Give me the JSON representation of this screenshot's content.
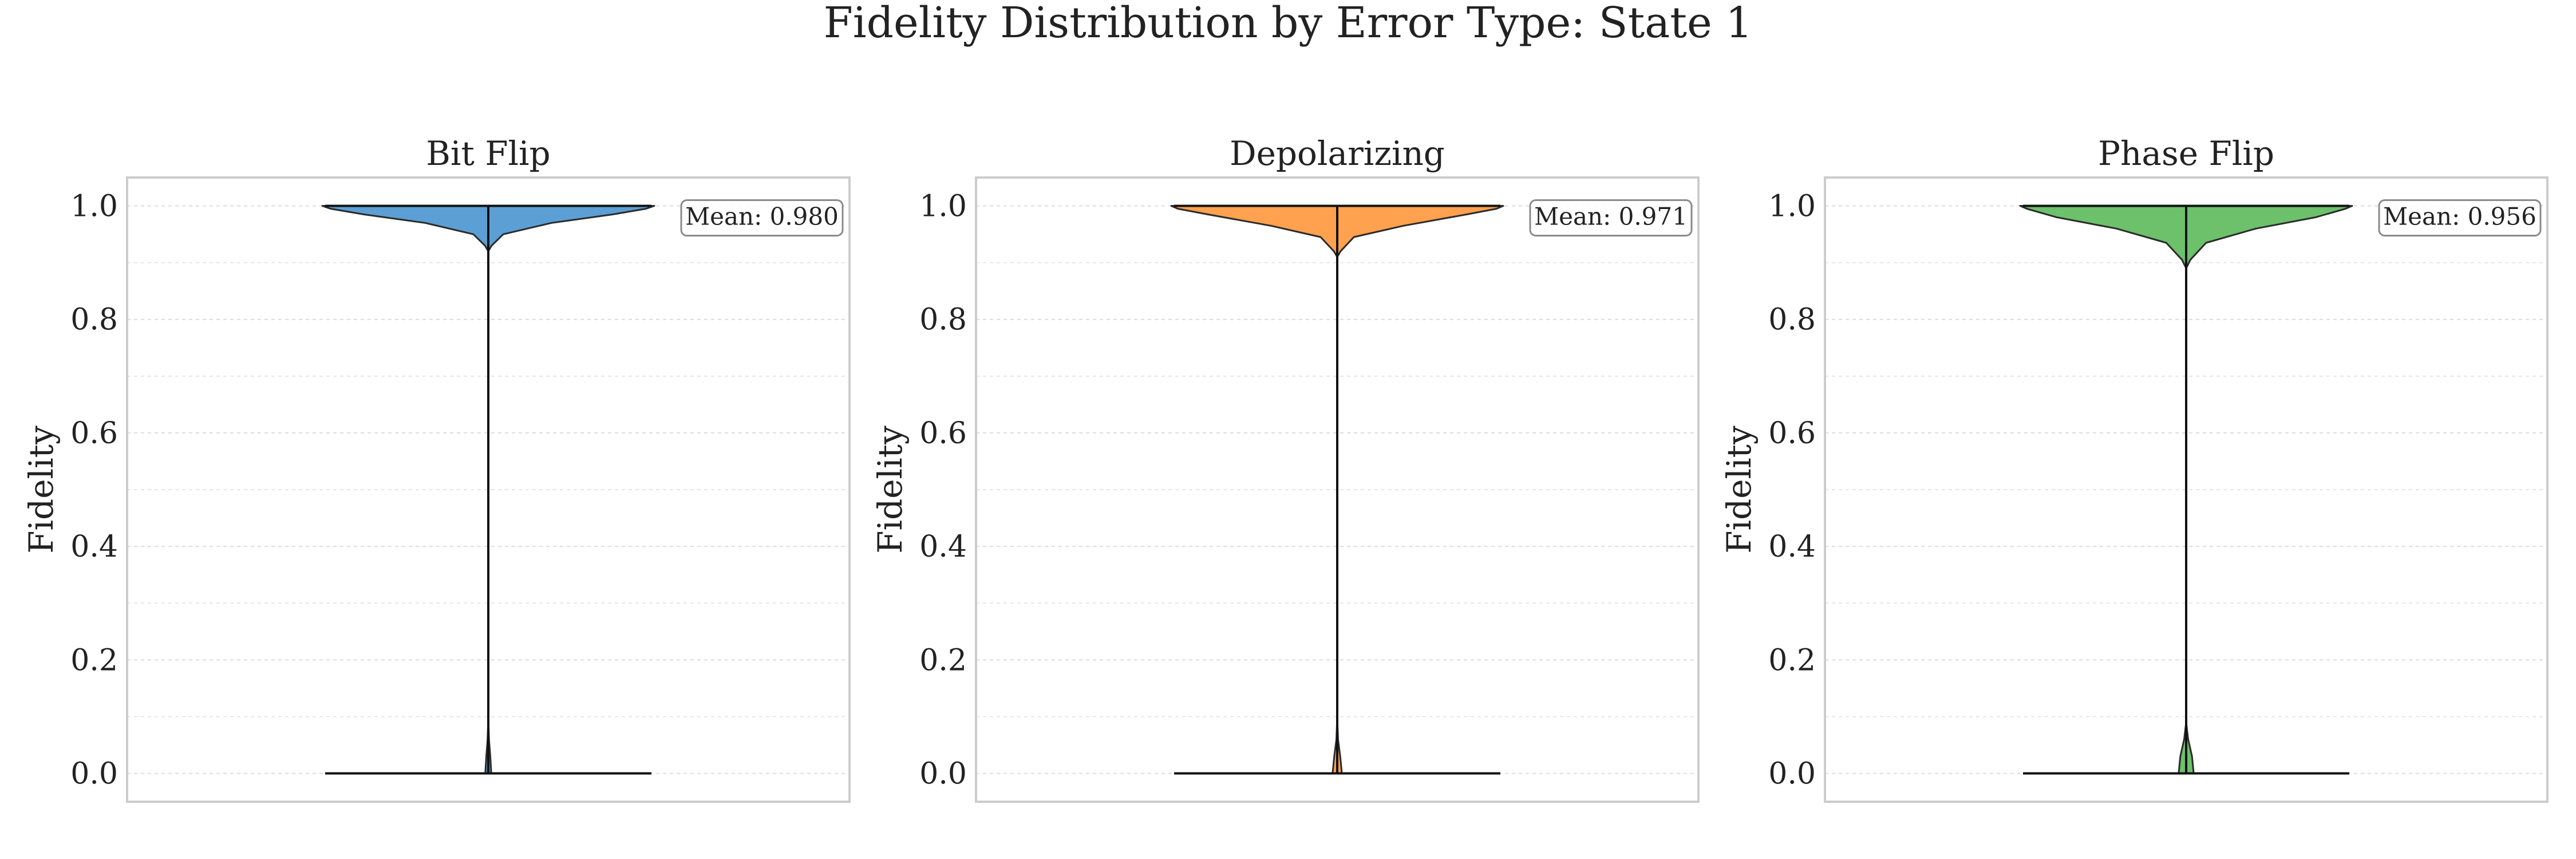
{
  "figure": {
    "title": "Fidelity Distribution by Error Type: State 1"
  },
  "chart_data": [
    {
      "type": "violin",
      "title": "Bit Flip",
      "ylabel": "Fidelity",
      "xlabel": "",
      "ylim": [
        -0.05,
        1.05
      ],
      "yticks": [
        "0.0",
        "0.2",
        "0.4",
        "0.6",
        "0.8",
        "1.0"
      ],
      "grid": true,
      "color": "#5b9fd4",
      "mean": 0.98,
      "mean_label": "Mean: 0.980",
      "min": 0.0,
      "max": 1.0,
      "density": [
        {
          "y": 0.0,
          "w": 0.018
        },
        {
          "y": 0.03,
          "w": 0.012
        },
        {
          "y": 0.06,
          "w": 0.004
        },
        {
          "y": 0.1,
          "w": 0.0
        },
        {
          "y": 0.92,
          "w": 0.0
        },
        {
          "y": 0.93,
          "w": 0.02
        },
        {
          "y": 0.95,
          "w": 0.09
        },
        {
          "y": 0.97,
          "w": 0.38
        },
        {
          "y": 0.985,
          "w": 0.75
        },
        {
          "y": 0.995,
          "w": 0.95
        },
        {
          "y": 1.0,
          "w": 1.0
        }
      ]
    },
    {
      "type": "violin",
      "title": "Depolarizing",
      "ylabel": "Fidelity",
      "xlabel": "",
      "ylim": [
        -0.05,
        1.05
      ],
      "yticks": [
        "0.0",
        "0.2",
        "0.4",
        "0.6",
        "0.8",
        "1.0"
      ],
      "grid": true,
      "color": "#ffa14f",
      "mean": 0.971,
      "mean_label": "Mean: 0.971",
      "min": 0.0,
      "max": 1.0,
      "density": [
        {
          "y": 0.0,
          "w": 0.028
        },
        {
          "y": 0.03,
          "w": 0.018
        },
        {
          "y": 0.06,
          "w": 0.005
        },
        {
          "y": 0.1,
          "w": 0.0
        },
        {
          "y": 0.91,
          "w": 0.0
        },
        {
          "y": 0.92,
          "w": 0.02
        },
        {
          "y": 0.945,
          "w": 0.1
        },
        {
          "y": 0.965,
          "w": 0.4
        },
        {
          "y": 0.985,
          "w": 0.78
        },
        {
          "y": 0.995,
          "w": 0.96
        },
        {
          "y": 1.0,
          "w": 1.0
        }
      ]
    },
    {
      "type": "violin",
      "title": "Phase Flip",
      "ylabel": "Fidelity",
      "xlabel": "",
      "ylim": [
        -0.05,
        1.05
      ],
      "yticks": [
        "0.0",
        "0.2",
        "0.4",
        "0.6",
        "0.8",
        "1.0"
      ],
      "grid": true,
      "color": "#6cc16a",
      "mean": 0.956,
      "mean_label": "Mean: 0.956",
      "min": 0.0,
      "max": 1.0,
      "density": [
        {
          "y": 0.0,
          "w": 0.045
        },
        {
          "y": 0.03,
          "w": 0.035
        },
        {
          "y": 0.06,
          "w": 0.012
        },
        {
          "y": 0.09,
          "w": 0.0
        },
        {
          "y": 0.89,
          "w": 0.0
        },
        {
          "y": 0.905,
          "w": 0.025
        },
        {
          "y": 0.935,
          "w": 0.12
        },
        {
          "y": 0.96,
          "w": 0.42
        },
        {
          "y": 0.98,
          "w": 0.78
        },
        {
          "y": 0.995,
          "w": 0.96
        },
        {
          "y": 1.0,
          "w": 1.0
        }
      ]
    }
  ]
}
